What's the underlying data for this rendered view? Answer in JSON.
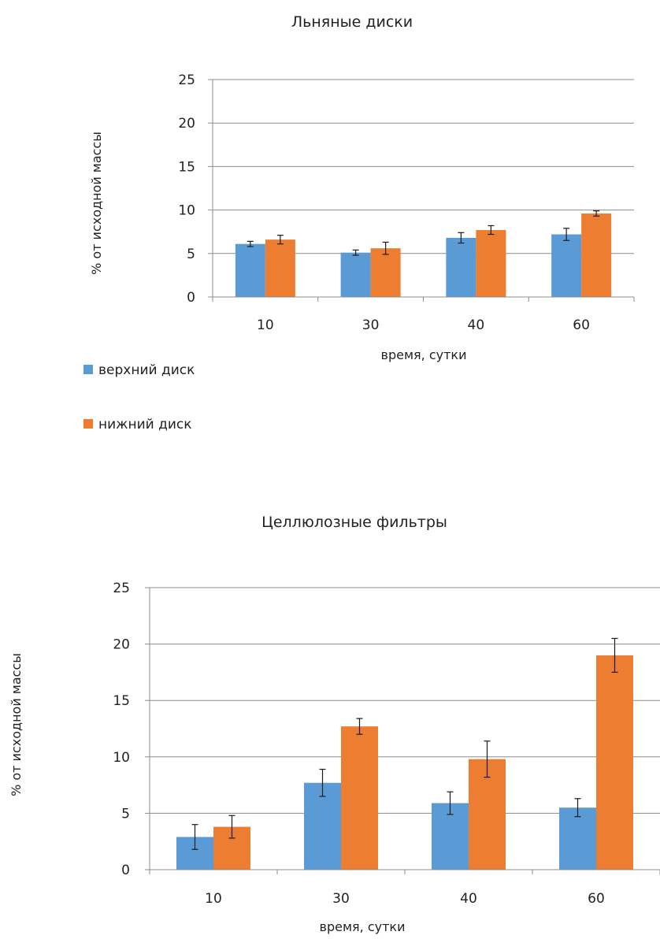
{
  "colors": {
    "upper": "#5b9bd5",
    "lower": "#ed7d31"
  },
  "legend": [
    {
      "label": "верхний диск",
      "color": "#5b9bd5"
    },
    {
      "label": "нижний диск",
      "color": "#ed7d31"
    }
  ],
  "chart_data": [
    {
      "type": "bar",
      "title": "Льняные диски",
      "xlabel": "время, сутки",
      "ylabel": "% от исходной массы",
      "categories": [
        "10",
        "30",
        "40",
        "60"
      ],
      "ylim": [
        0,
        25
      ],
      "yticks": [
        "0",
        "5",
        "10",
        "15",
        "20",
        "25"
      ],
      "grid": true,
      "series": [
        {
          "name": "верхний диск",
          "values": [
            6.1,
            5.1,
            6.8,
            7.2
          ],
          "errors": [
            0.3,
            0.3,
            0.6,
            0.7
          ]
        },
        {
          "name": "нижний диск",
          "values": [
            6.6,
            5.6,
            7.7,
            9.6
          ],
          "errors": [
            0.5,
            0.7,
            0.5,
            0.3
          ]
        }
      ]
    },
    {
      "type": "bar",
      "title": "Целлюлозные фильтры",
      "xlabel": "время, сутки",
      "ylabel": "% от исходной массы",
      "categories": [
        "10",
        "30",
        "40",
        "60"
      ],
      "ylim": [
        0,
        25
      ],
      "yticks": [
        "0",
        "5",
        "10",
        "15",
        "20",
        "25"
      ],
      "grid": true,
      "series": [
        {
          "name": "верхний диск",
          "values": [
            2.9,
            7.7,
            5.9,
            5.5
          ],
          "errors": [
            1.1,
            1.2,
            1.0,
            0.8
          ]
        },
        {
          "name": "нижний диск",
          "values": [
            3.8,
            12.7,
            9.8,
            19.0
          ],
          "errors": [
            1.0,
            0.7,
            1.6,
            1.5
          ]
        }
      ]
    }
  ]
}
